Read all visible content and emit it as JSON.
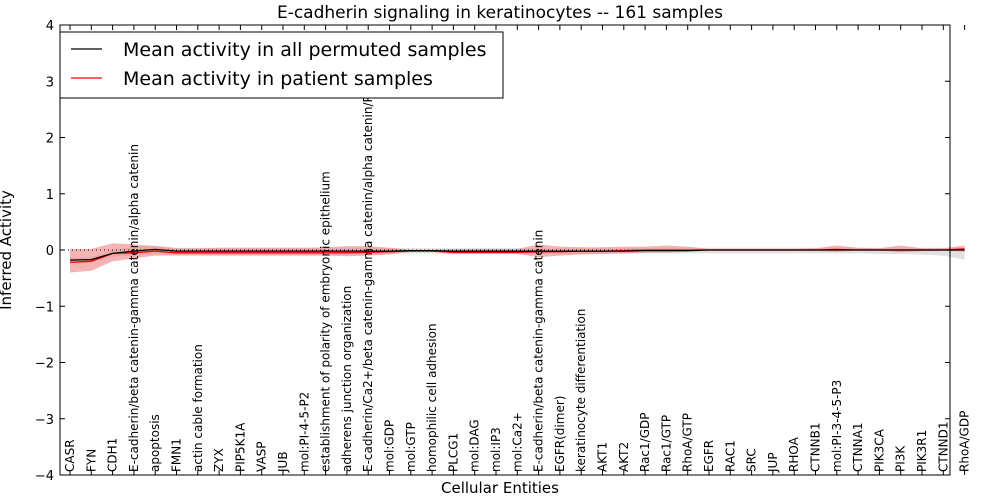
{
  "chart_data": {
    "type": "line",
    "title": "E-cadherin signaling in keratinocytes -- 161 samples",
    "xlabel": "Cellular Entities",
    "ylabel": "Inferred Activity",
    "ylim": [
      -4,
      4
    ],
    "yticks": [
      -4,
      -3,
      -2,
      -1,
      0,
      1,
      2,
      3,
      4
    ],
    "ytick_labels": [
      "−4",
      "−3",
      "−2",
      "−1",
      "0",
      "1",
      "2",
      "3",
      "4"
    ],
    "legend_position": "top-left",
    "categories": [
      "CASR",
      "FYN",
      "CDH1",
      "E-cadherin/beta catenin-gamma catenin/alpha catenin",
      "apoptosis",
      "FMN1",
      "actin cable formation",
      "ZYX",
      "PIP5K1A",
      "VASP",
      "JUB",
      "mol:PI-4-5-P2",
      "establishment of polarity of embryonic epithelium",
      "adherens junction organization",
      "E-cadherin/Ca2+/beta catenin-gamma catenin/alpha catenin/PIP5K1C",
      "mol:GDP",
      "mol:GTP",
      "homophilic cell adhesion",
      "PLCG1",
      "mol:DAG",
      "mol:IP3",
      "mol:Ca2+",
      "E-cadherin/beta catenin-gamma catenin",
      "EGFR(dimer)",
      "keratinocyte differentiation",
      "AKT1",
      "AKT2",
      "Rac1/GDP",
      "Rac1/GTP",
      "RhoA/GTP",
      "EGFR",
      "RAC1",
      "SRC",
      "JUP",
      "RHOA",
      "CTNNB1",
      "mol:PI-3-4-5-P3",
      "CTNNA1",
      "PIK3CA",
      "PI3K",
      "PIK3R1",
      "CTNND1",
      "RhoA/GDP"
    ],
    "series": [
      {
        "name": "Mean activity in all permuted samples",
        "color": "#000000",
        "band_color": "#c8c8c8",
        "values": [
          -0.18,
          -0.17,
          -0.06,
          -0.02,
          0.01,
          -0.02,
          -0.02,
          -0.02,
          -0.02,
          -0.02,
          -0.02,
          -0.02,
          -0.02,
          -0.02,
          -0.02,
          -0.02,
          -0.01,
          -0.01,
          -0.02,
          -0.02,
          -0.02,
          -0.02,
          -0.02,
          -0.02,
          -0.02,
          -0.02,
          -0.02,
          -0.01,
          -0.01,
          -0.01,
          0.0,
          0.0,
          0.0,
          0.0,
          0.0,
          0.0,
          0.0,
          0.0,
          0.0,
          0.0,
          0.0,
          0.0,
          0.0
        ],
        "band_low": [
          -0.22,
          -0.2,
          -0.12,
          -0.1,
          -0.07,
          -0.08,
          -0.08,
          -0.08,
          -0.08,
          -0.08,
          -0.08,
          -0.08,
          -0.08,
          -0.08,
          -0.08,
          -0.07,
          -0.06,
          -0.06,
          -0.07,
          -0.07,
          -0.07,
          -0.07,
          -0.07,
          -0.07,
          -0.07,
          -0.07,
          -0.07,
          -0.06,
          -0.06,
          -0.06,
          -0.06,
          -0.06,
          -0.06,
          -0.06,
          -0.06,
          -0.06,
          -0.06,
          -0.06,
          -0.07,
          -0.07,
          -0.08,
          -0.1,
          -0.17
        ],
        "band_high": [
          -0.14,
          -0.13,
          0.0,
          0.06,
          0.08,
          0.04,
          0.04,
          0.04,
          0.04,
          0.04,
          0.04,
          0.04,
          0.04,
          0.04,
          0.04,
          0.04,
          0.03,
          0.03,
          0.03,
          0.03,
          0.03,
          0.03,
          0.03,
          0.03,
          0.03,
          0.03,
          0.03,
          0.03,
          0.04,
          0.04,
          0.04,
          0.04,
          0.04,
          0.04,
          0.04,
          0.04,
          0.04,
          0.04,
          0.04,
          0.04,
          0.04,
          0.04,
          0.04
        ]
      },
      {
        "name": "Mean activity in patient samples",
        "color": "#ff0000",
        "band_color": "#f08080",
        "values": [
          -0.22,
          -0.2,
          -0.06,
          -0.05,
          -0.02,
          -0.05,
          -0.05,
          -0.05,
          -0.05,
          -0.05,
          -0.05,
          -0.05,
          -0.05,
          -0.05,
          -0.04,
          -0.03,
          -0.02,
          -0.02,
          -0.04,
          -0.04,
          -0.04,
          -0.04,
          -0.03,
          -0.03,
          -0.02,
          -0.02,
          -0.01,
          0.0,
          0.0,
          0.0,
          0.0,
          0.0,
          0.0,
          0.0,
          0.0,
          0.0,
          0.01,
          0.0,
          0.0,
          0.0,
          0.0,
          0.0,
          0.02
        ],
        "band_low": [
          -0.4,
          -0.37,
          -0.2,
          -0.15,
          -0.1,
          -0.1,
          -0.1,
          -0.1,
          -0.1,
          -0.1,
          -0.1,
          -0.1,
          -0.1,
          -0.11,
          -0.1,
          -0.08,
          -0.03,
          -0.03,
          -0.07,
          -0.07,
          -0.07,
          -0.07,
          -0.13,
          -0.1,
          -0.08,
          -0.07,
          -0.06,
          -0.05,
          -0.05,
          -0.03,
          -0.01,
          -0.01,
          -0.01,
          -0.01,
          -0.01,
          -0.02,
          -0.03,
          -0.01,
          -0.01,
          -0.04,
          -0.02,
          -0.01,
          -0.03
        ],
        "band_high": [
          0.02,
          0.02,
          0.12,
          0.1,
          0.07,
          0.03,
          0.03,
          0.04,
          0.04,
          0.04,
          0.04,
          0.04,
          0.05,
          0.07,
          0.07,
          0.04,
          0.0,
          0.0,
          0.01,
          0.02,
          0.02,
          0.02,
          0.1,
          0.06,
          0.05,
          0.05,
          0.06,
          0.06,
          0.08,
          0.06,
          0.02,
          0.02,
          0.02,
          0.02,
          0.02,
          0.03,
          0.08,
          0.04,
          0.03,
          0.08,
          0.03,
          0.03,
          0.08
        ]
      }
    ]
  }
}
